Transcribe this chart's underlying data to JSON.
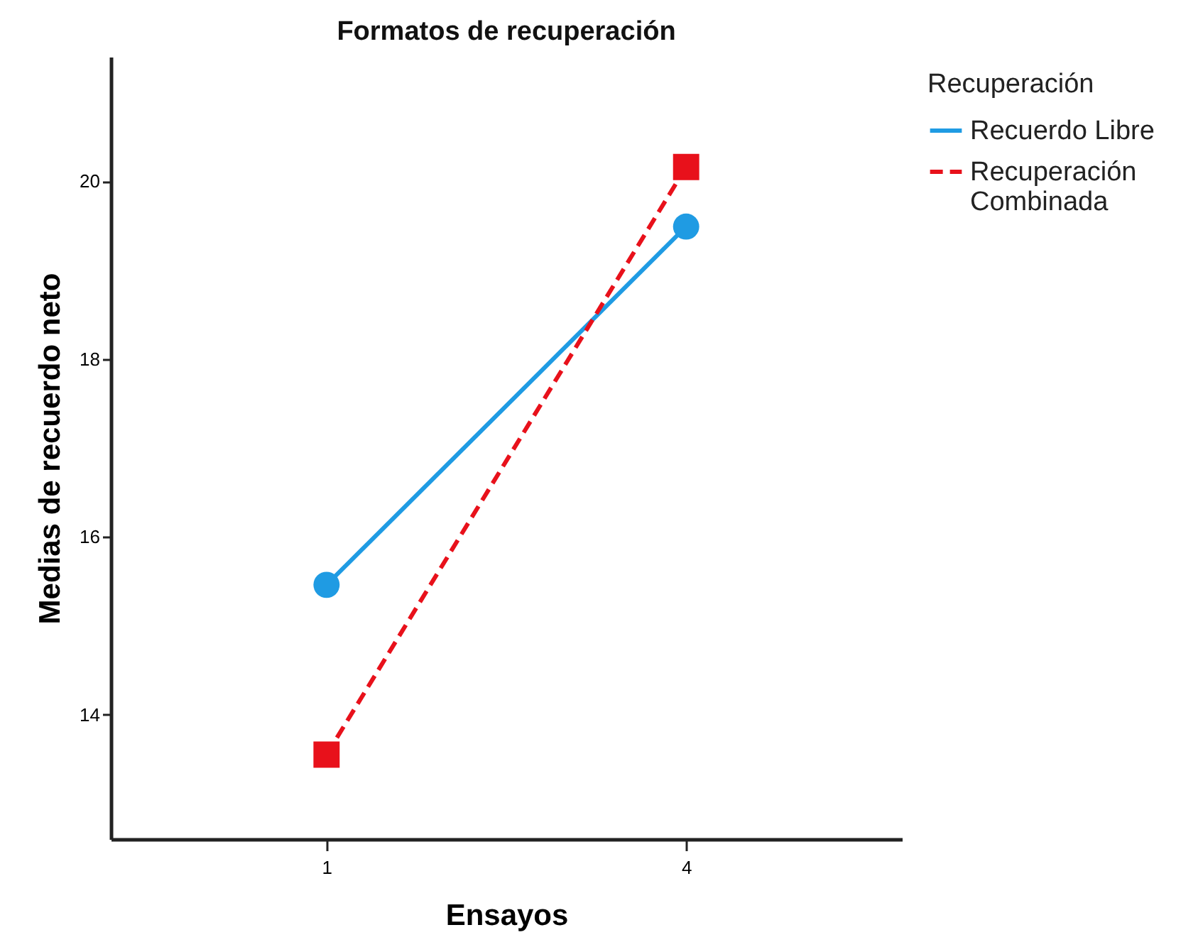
{
  "chart_data": {
    "type": "line",
    "title": "Formatos de recuperación",
    "xlabel": "Ensayos",
    "ylabel": "Medias de recuerdo neto",
    "legend_title": "Recuperación",
    "categories": [
      "1",
      "4"
    ],
    "series": [
      {
        "name": "Recuerdo Libre",
        "color": "#1f9be3",
        "values": [
          15.46,
          19.49
        ],
        "marker": "circle",
        "line_style": "solid"
      },
      {
        "name": "Recuperación Combinada",
        "color": "#e8111b",
        "values": [
          13.55,
          20.16
        ],
        "marker": "square",
        "line_style": "dashed"
      }
    ],
    "ylim": [
      12.6,
      21.4
    ],
    "yticks": [
      14,
      16,
      18,
      20
    ],
    "grid": false,
    "legend": "top right"
  }
}
